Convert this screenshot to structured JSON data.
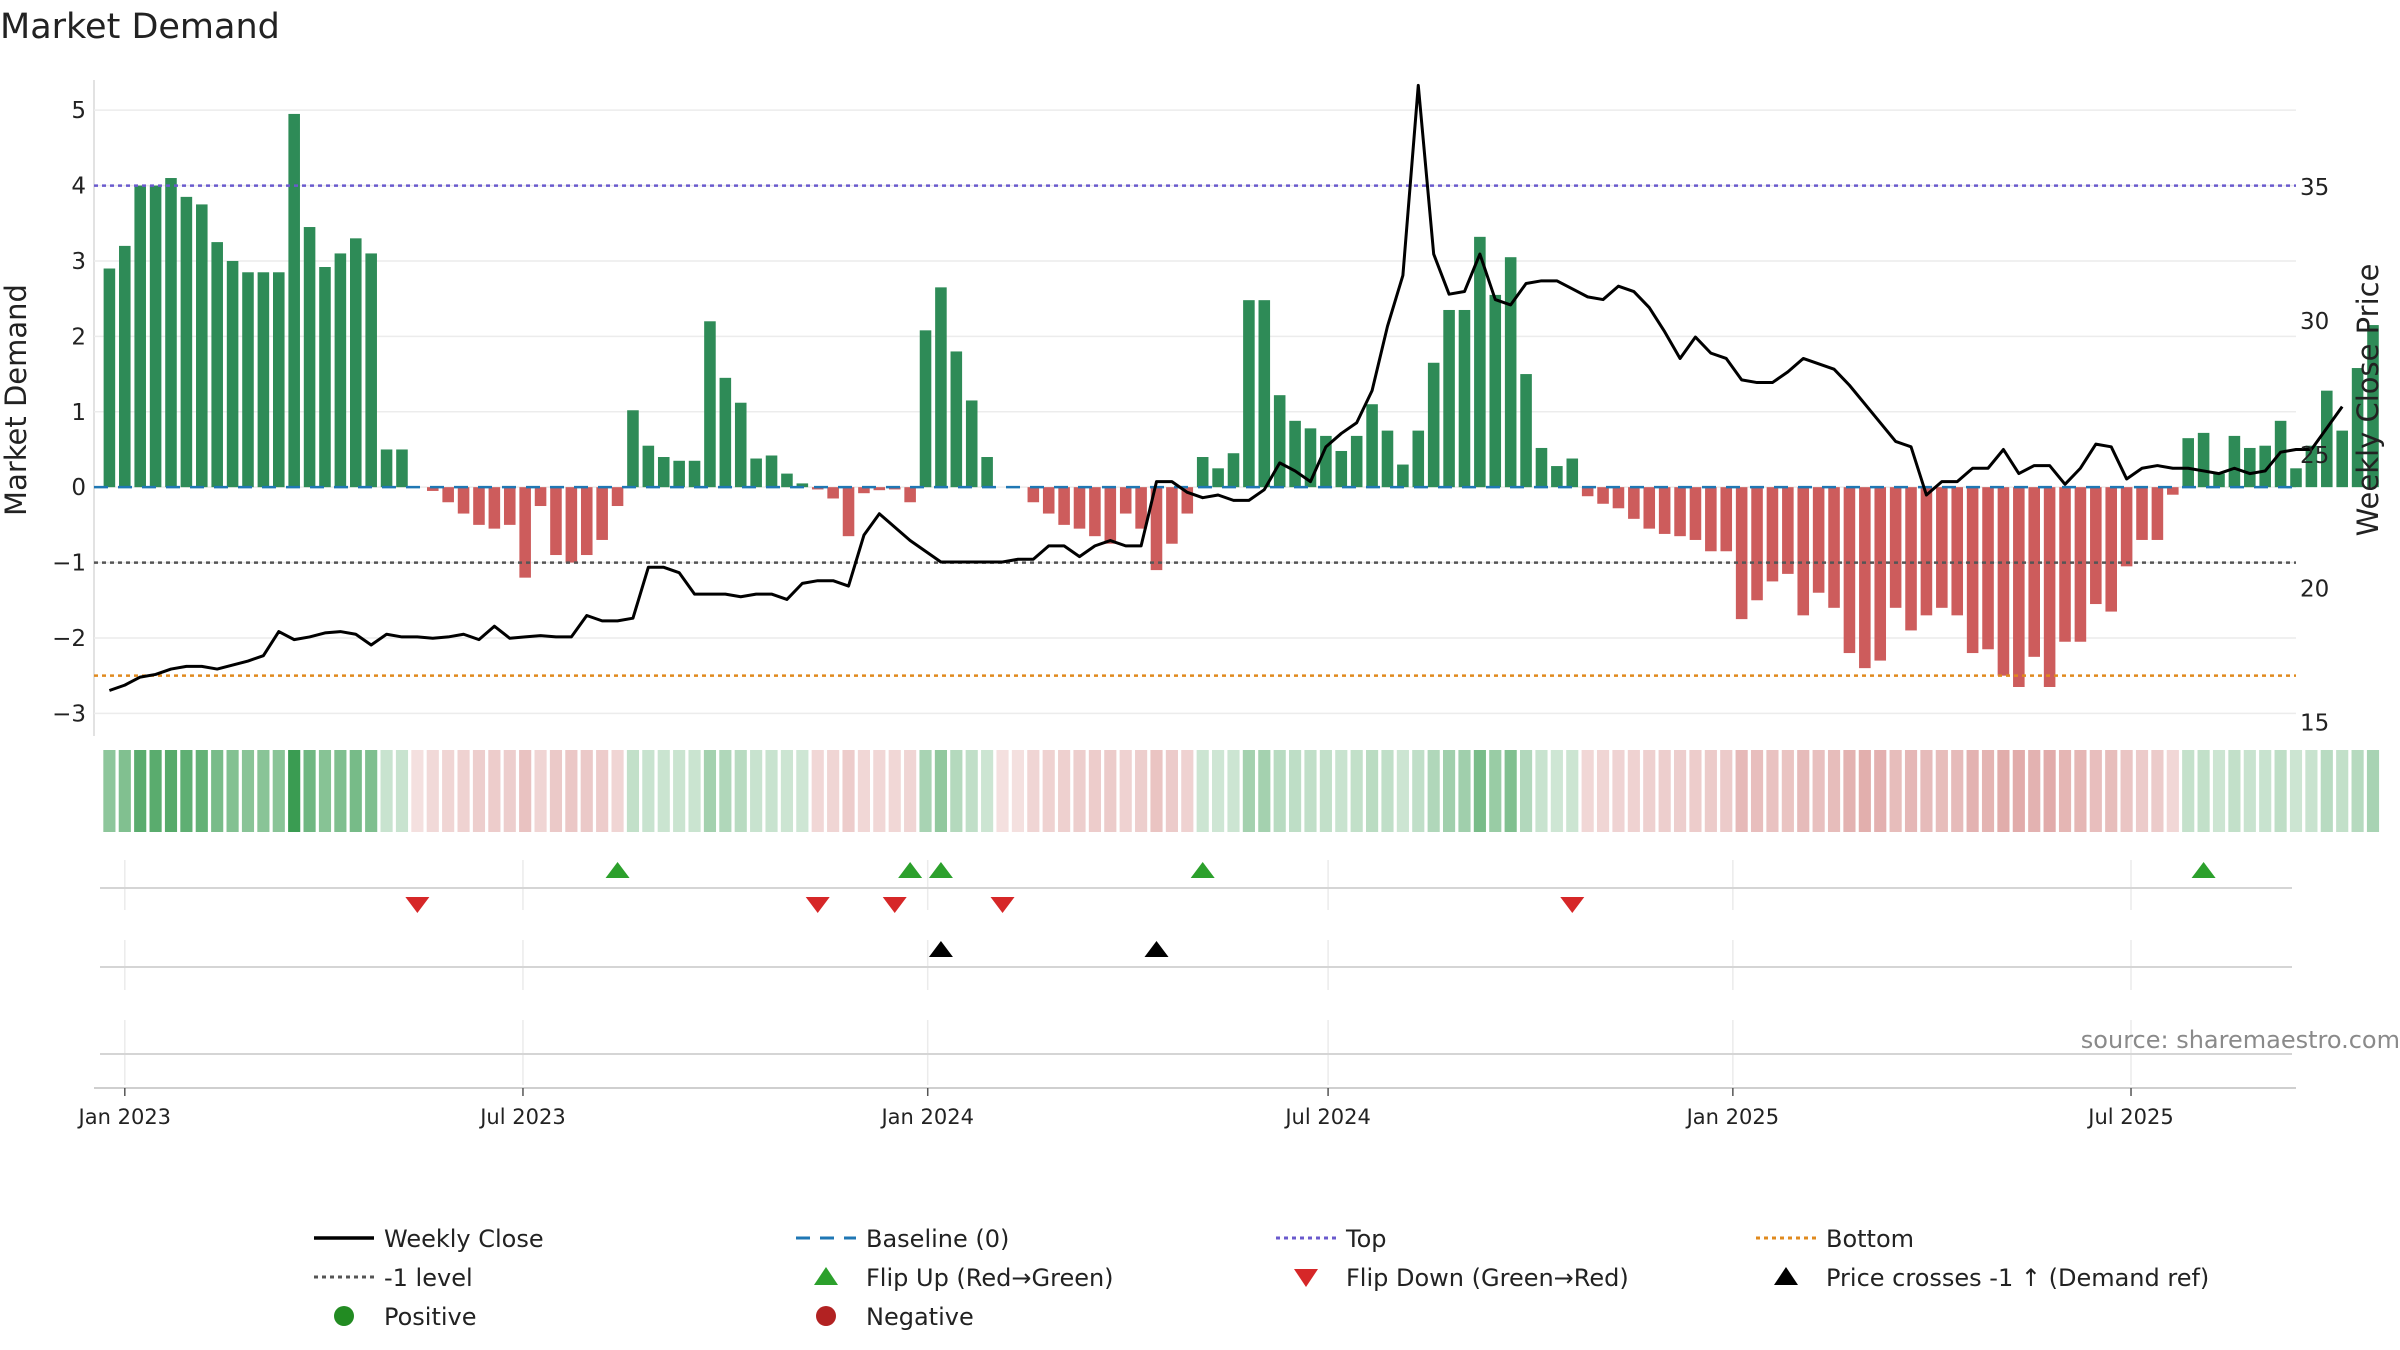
{
  "chart_data": {
    "type": "bar",
    "title": "Market Demand",
    "ylabel": "Market Demand",
    "y2label": "Weekly Close Price",
    "source": "source: sharemaestro.com",
    "ylim": [
      -3.3,
      5.4
    ],
    "y2lim": [
      14.5,
      39.0
    ],
    "yticks": [
      -3,
      -2,
      -1,
      0,
      1,
      2,
      3,
      4,
      5
    ],
    "y2ticks": [
      15,
      20,
      25,
      30,
      35
    ],
    "levels": {
      "top": 4.0,
      "minus_one": -1.0,
      "bottom": -2.5,
      "baseline": 0
    },
    "start_date": "2022-12-25",
    "week_days": 7,
    "date_range": [
      "2022-12-18",
      "2025-09-14"
    ],
    "xticks": [
      {
        "date": "2023-01-01",
        "label": "Jan 2023"
      },
      {
        "date": "2023-07-01",
        "label": "Jul 2023"
      },
      {
        "date": "2024-01-01",
        "label": "Jan 2024"
      },
      {
        "date": "2024-07-01",
        "label": "Jul 2024"
      },
      {
        "date": "2025-01-01",
        "label": "Jan 2025"
      },
      {
        "date": "2025-07-01",
        "label": "Jul 2025"
      }
    ],
    "demand": [
      2.9,
      3.2,
      4.0,
      4.0,
      4.1,
      3.85,
      3.75,
      3.25,
      3.0,
      2.85,
      2.85,
      2.85,
      4.95,
      3.45,
      2.92,
      3.1,
      3.3,
      3.1,
      0.5,
      0.5,
      0.0,
      -0.05,
      -0.2,
      -0.35,
      -0.5,
      -0.55,
      -0.5,
      -1.2,
      -0.25,
      -0.9,
      -1.0,
      -0.9,
      -0.7,
      -0.25,
      1.02,
      0.55,
      0.4,
      0.35,
      0.35,
      2.2,
      1.45,
      1.12,
      0.38,
      0.42,
      0.18,
      0.05,
      -0.03,
      -0.15,
      -0.65,
      -0.08,
      -0.04,
      -0.03,
      -0.2,
      2.08,
      2.65,
      1.8,
      1.15,
      0.4,
      0.0,
      0.0,
      -0.2,
      -0.35,
      -0.5,
      -0.55,
      -0.65,
      -0.75,
      -0.35,
      -0.55,
      -1.1,
      -0.75,
      -0.35,
      0.4,
      0.25,
      0.45,
      2.48,
      2.48,
      1.22,
      0.88,
      0.78,
      0.68,
      0.48,
      0.68,
      1.1,
      0.75,
      0.3,
      0.75,
      1.65,
      2.35,
      2.35,
      3.32,
      2.55,
      3.05,
      1.5,
      0.52,
      0.28,
      0.38,
      -0.12,
      -0.22,
      -0.28,
      -0.42,
      -0.55,
      -0.62,
      -0.65,
      -0.7,
      -0.85,
      -0.85,
      -1.75,
      -1.5,
      -1.25,
      -1.15,
      -1.7,
      -1.4,
      -1.6,
      -2.2,
      -2.4,
      -2.3,
      -1.6,
      -1.9,
      -1.7,
      -1.6,
      -1.7,
      -2.2,
      -2.15,
      -2.5,
      -2.65,
      -2.25,
      -2.65,
      -2.05,
      -2.05,
      -1.55,
      -1.65,
      -1.05,
      -0.7,
      -0.7,
      -0.1,
      0.65,
      0.72,
      0.18,
      0.68,
      0.52,
      0.55,
      0.88,
      0.25,
      0.55,
      1.28,
      0.75,
      1.58,
      2.15
    ],
    "close": [
      16.2,
      16.4,
      16.7,
      16.8,
      17.0,
      17.1,
      17.1,
      17.0,
      17.15,
      17.3,
      17.5,
      18.4,
      18.1,
      18.2,
      18.35,
      18.4,
      18.3,
      17.9,
      18.3,
      18.2,
      18.2,
      18.15,
      18.2,
      18.3,
      18.1,
      18.6,
      18.15,
      18.2,
      18.25,
      18.2,
      18.2,
      19.0,
      18.8,
      18.8,
      18.9,
      20.8,
      20.8,
      20.6,
      19.8,
      19.8,
      19.8,
      19.7,
      19.8,
      19.8,
      19.6,
      20.2,
      20.3,
      20.3,
      20.1,
      22.0,
      22.8,
      22.3,
      21.8,
      21.4,
      21.0,
      21.0,
      21.0,
      21.0,
      21.0,
      21.1,
      21.1,
      21.6,
      21.6,
      21.2,
      21.6,
      21.8,
      21.6,
      21.6,
      24.0,
      24.0,
      23.6,
      23.4,
      23.5,
      23.3,
      23.3,
      23.7,
      24.7,
      24.4,
      24.0,
      25.3,
      25.8,
      26.2,
      27.4,
      29.8,
      31.7,
      38.8,
      32.5,
      31.0,
      31.1,
      32.5,
      30.8,
      30.6,
      31.4,
      31.5,
      31.5,
      31.2,
      30.9,
      30.8,
      31.3,
      31.1,
      30.5,
      29.6,
      28.6,
      29.4,
      28.8,
      28.6,
      27.8,
      27.7,
      27.7,
      28.1,
      28.6,
      28.4,
      28.2,
      27.6,
      26.9,
      26.2,
      25.5,
      25.3,
      23.5,
      24.0,
      24.0,
      24.5,
      24.5,
      25.2,
      24.3,
      24.6,
      24.6,
      23.9,
      24.5,
      25.4,
      25.3,
      24.1,
      24.5,
      24.6,
      24.5,
      24.5,
      24.4,
      24.3,
      24.5,
      24.3,
      24.4,
      25.1,
      25.2,
      25.2,
      26.0,
      26.8
    ],
    "tiles": [
      0.58,
      0.64,
      0.84,
      0.84,
      0.86,
      0.81,
      0.79,
      0.68,
      0.63,
      0.6,
      0.6,
      0.6,
      1.0,
      0.73,
      0.61,
      0.65,
      0.69,
      0.65,
      0.28,
      0.28,
      0.18,
      0.22,
      0.24,
      0.26,
      0.28,
      0.29,
      0.28,
      0.35,
      0.24,
      0.31,
      0.32,
      0.31,
      0.29,
      0.24,
      0.31,
      0.28,
      0.27,
      0.27,
      0.27,
      0.46,
      0.4,
      0.36,
      0.28,
      0.28,
      0.26,
      0.25,
      0.23,
      0.24,
      0.29,
      0.23,
      0.23,
      0.23,
      0.24,
      0.44,
      0.56,
      0.38,
      0.32,
      0.26,
      0.18,
      0.18,
      0.24,
      0.26,
      0.27,
      0.28,
      0.29,
      0.3,
      0.26,
      0.28,
      0.34,
      0.3,
      0.26,
      0.26,
      0.25,
      0.26,
      0.46,
      0.46,
      0.36,
      0.33,
      0.32,
      0.31,
      0.28,
      0.31,
      0.35,
      0.32,
      0.26,
      0.32,
      0.4,
      0.48,
      0.48,
      0.68,
      0.52,
      0.64,
      0.39,
      0.28,
      0.25,
      0.26,
      0.23,
      0.24,
      0.25,
      0.26,
      0.27,
      0.28,
      0.28,
      0.29,
      0.3,
      0.3,
      0.4,
      0.37,
      0.35,
      0.34,
      0.39,
      0.36,
      0.38,
      0.44,
      0.46,
      0.45,
      0.38,
      0.41,
      0.39,
      0.38,
      0.39,
      0.44,
      0.43,
      0.47,
      0.48,
      0.44,
      0.48,
      0.42,
      0.42,
      0.37,
      0.38,
      0.33,
      0.3,
      0.3,
      0.23,
      0.3,
      0.31,
      0.26,
      0.31,
      0.28,
      0.28,
      0.33,
      0.26,
      0.28,
      0.36,
      0.31,
      0.37,
      0.44
    ],
    "flip_up_weeks": [
      33,
      52,
      54,
      71,
      136
    ],
    "flip_down_weeks": [
      20,
      46,
      51,
      58,
      95
    ],
    "price_cross_weeks": [
      54,
      68
    ],
    "legend": [
      {
        "label": "Weekly Close",
        "symbol": "line",
        "color": "#000000"
      },
      {
        "label": "Baseline (0)",
        "symbol": "dash",
        "color": "#1f77b4"
      },
      {
        "label": "Top",
        "symbol": "dot",
        "color": "#6a5acd"
      },
      {
        "label": "Bottom",
        "symbol": "dot",
        "color": "#e08a1e"
      },
      {
        "label": "-1 level",
        "symbol": "dot",
        "color": "#555555"
      },
      {
        "label": "Flip Up (Red→Green)",
        "symbol": "tri-up",
        "color": "#2ca02c"
      },
      {
        "label": "Flip Down (Green→Red)",
        "symbol": "tri-down",
        "color": "#d62728"
      },
      {
        "label": "Price crosses -1 ↑ (Demand ref)",
        "symbol": "tri-up",
        "color": "#000000"
      },
      {
        "label": "Positive",
        "symbol": "circle",
        "color": "#228b22"
      },
      {
        "label": "Negative",
        "symbol": "circle",
        "color": "#b22222"
      }
    ],
    "colors": {
      "positive_bar": "#2e8b57",
      "negative_bar": "#cd5c5c",
      "tile_positive": "#3a9c52",
      "tile_negative": "#c0504d",
      "close_line": "#000000",
      "top_line": "#6a5acd",
      "bottom_line": "#e08a1e",
      "minus_one_line": "#555555",
      "baseline": "#1f77b4",
      "flip_up": "#2ca02c",
      "flip_down": "#d62728",
      "price_cross": "#000000"
    }
  }
}
